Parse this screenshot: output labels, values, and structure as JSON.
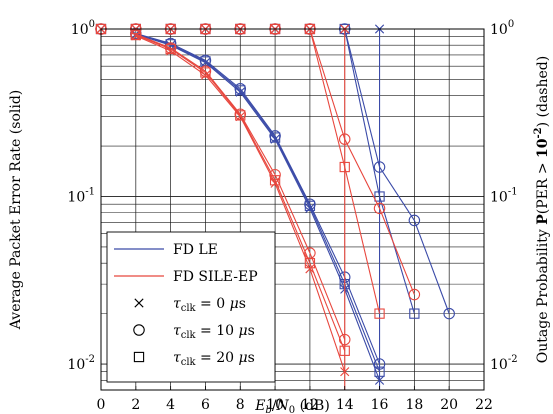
{
  "chart_data": {
    "type": "line",
    "xlabel": "E_b/N_0 (dB)",
    "ylabel_left": "Average Packet Error Rate (solid)",
    "ylabel_right": "Outage Probability P(PER > 10^-2) (dashed)",
    "xlim": [
      0,
      22
    ],
    "x_ticks": [
      0,
      2,
      4,
      6,
      8,
      10,
      12,
      14,
      16,
      18,
      20,
      22
    ],
    "ylim": [
      0.007,
      1
    ],
    "y_scale": "log",
    "y_ticks_left": [
      "10^0",
      "10^-1",
      "10^-2"
    ],
    "y_ticks_right": [
      "10^0",
      "10^-1",
      "10^-2"
    ],
    "grid": true,
    "legend_position": "bottom-left",
    "legend": [
      {
        "label": "FD LE",
        "kind": "line",
        "color": "#3b4ba8"
      },
      {
        "label": "FD SILE-EP",
        "kind": "line",
        "color": "#e8473e"
      },
      {
        "label": "τ_clk = 0 μs",
        "kind": "marker",
        "marker": "x"
      },
      {
        "label": "τ_clk = 10 μs",
        "kind": "marker",
        "marker": "circle"
      },
      {
        "label": "τ_clk = 20 μs",
        "kind": "marker",
        "marker": "square"
      }
    ],
    "series": [
      {
        "name": "FD LE, τ_clk = 0 μs (solid)",
        "color": "#3b4ba8",
        "marker": "x",
        "x": [
          2,
          4,
          6,
          8,
          10,
          12,
          14,
          16
        ],
        "y": [
          0.93,
          0.8,
          0.63,
          0.42,
          0.22,
          0.085,
          0.028,
          0.008
        ]
      },
      {
        "name": "FD LE, τ_clk = 10 μs (solid)",
        "color": "#3b4ba8",
        "marker": "circle",
        "x": [
          2,
          4,
          6,
          8,
          10,
          12,
          14,
          16
        ],
        "y": [
          0.94,
          0.82,
          0.65,
          0.44,
          0.23,
          0.09,
          0.033,
          0.01
        ]
      },
      {
        "name": "FD LE, τ_clk = 20 μs (solid)",
        "color": "#3b4ba8",
        "marker": "square",
        "x": [
          2,
          4,
          6,
          8,
          10,
          12,
          14,
          16
        ],
        "y": [
          0.93,
          0.81,
          0.64,
          0.43,
          0.225,
          0.088,
          0.03,
          0.009
        ]
      },
      {
        "name": "FD SILE-EP, τ_clk = 0 μs (solid)",
        "color": "#e8473e",
        "marker": "x",
        "x": [
          2,
          4,
          6,
          8,
          10,
          12,
          14
        ],
        "y": [
          0.91,
          0.74,
          0.53,
          0.3,
          0.12,
          0.037,
          0.009
        ]
      },
      {
        "name": "FD SILE-EP, τ_clk = 10 μs (solid)",
        "color": "#e8473e",
        "marker": "circle",
        "x": [
          2,
          4,
          6,
          8,
          10,
          12,
          14
        ],
        "y": [
          0.93,
          0.77,
          0.56,
          0.31,
          0.135,
          0.046,
          0.014
        ]
      },
      {
        "name": "FD SILE-EP, τ_clk = 20 μs (solid)",
        "color": "#e8473e",
        "marker": "square",
        "x": [
          2,
          4,
          6,
          8,
          10,
          12,
          14
        ],
        "y": [
          0.92,
          0.76,
          0.55,
          0.305,
          0.125,
          0.04,
          0.012
        ]
      },
      {
        "name": "FD LE, τ_clk = 0 μs (outage)",
        "color": "#3b4ba8",
        "marker": "x",
        "x": [
          0,
          2,
          4,
          6,
          8,
          10,
          12,
          14,
          16,
          16
        ],
        "y": [
          1,
          1,
          1,
          1,
          1,
          1,
          1,
          1,
          1,
          0.007
        ]
      },
      {
        "name": "FD LE, τ_clk = 10 μs (outage)",
        "color": "#3b4ba8",
        "marker": "circle",
        "x": [
          0,
          2,
          4,
          6,
          8,
          10,
          12,
          14,
          16,
          18,
          20
        ],
        "y": [
          1,
          1,
          1,
          1,
          1,
          1,
          1,
          1,
          0.15,
          0.072,
          0.02
        ]
      },
      {
        "name": "FD LE, τ_clk = 20 μs (outage)",
        "color": "#3b4ba8",
        "marker": "square",
        "x": [
          0,
          2,
          4,
          6,
          8,
          10,
          12,
          14,
          16,
          18
        ],
        "y": [
          1,
          1,
          1,
          1,
          1,
          1,
          1,
          1,
          0.1,
          0.02
        ]
      },
      {
        "name": "FD SILE-EP, τ_clk = 0 μs (outage)",
        "color": "#e8473e",
        "marker": "x",
        "x": [
          0,
          2,
          4,
          6,
          8,
          10,
          12,
          14,
          14
        ],
        "y": [
          1,
          1,
          1,
          1,
          1,
          1,
          1,
          1,
          0.007
        ]
      },
      {
        "name": "FD SILE-EP, τ_clk = 10 μs (outage)",
        "color": "#e8473e",
        "marker": "circle",
        "x": [
          0,
          2,
          4,
          6,
          8,
          10,
          12,
          14,
          16,
          18
        ],
        "y": [
          1,
          1,
          1,
          1,
          1,
          1,
          1,
          0.22,
          0.085,
          0.026
        ]
      },
      {
        "name": "FD SILE-EP, τ_clk = 20 μs (outage)",
        "color": "#e8473e",
        "marker": "square",
        "x": [
          0,
          2,
          4,
          6,
          8,
          10,
          12,
          14,
          16
        ],
        "y": [
          1,
          1,
          1,
          1,
          1,
          1,
          1,
          0.15,
          0.02
        ]
      }
    ]
  }
}
